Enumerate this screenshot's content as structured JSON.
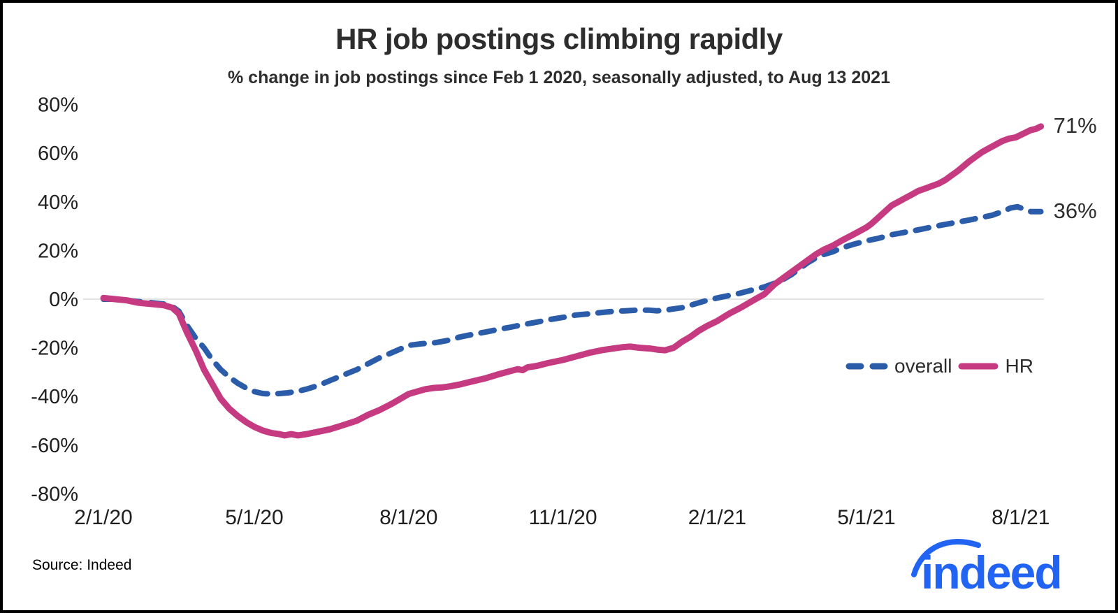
{
  "header": {
    "title": "HR job postings climbing rapidly",
    "subtitle": "% change in job postings since Feb 1 2020, seasonally adjusted, to Aug 13 2021"
  },
  "chart_data": {
    "type": "line",
    "title": "HR job postings climbing rapidly",
    "subtitle": "% change in job postings since Feb 1 2020, seasonally adjusted, to Aug 13 2021",
    "x_unit": "days since Feb 1 2020",
    "x_range_days": [
      0,
      559
    ],
    "ylim": [
      -80,
      80
    ],
    "grid": "zero-line-only",
    "legend_position": "center-right",
    "x_ticks": [
      {
        "label": "2/1/20",
        "day": 0
      },
      {
        "label": "5/1/20",
        "day": 90
      },
      {
        "label": "8/1/20",
        "day": 182
      },
      {
        "label": "11/1/20",
        "day": 274
      },
      {
        "label": "2/1/21",
        "day": 366
      },
      {
        "label": "5/1/21",
        "day": 455
      },
      {
        "label": "8/1/21",
        "day": 547
      }
    ],
    "y_ticks": [
      {
        "value": 80,
        "label": "80%"
      },
      {
        "value": 60,
        "label": "60%"
      },
      {
        "value": 40,
        "label": "40%"
      },
      {
        "value": 20,
        "label": "20%"
      },
      {
        "value": 0,
        "label": "0%"
      },
      {
        "value": -20,
        "label": "-20%"
      },
      {
        "value": -40,
        "label": "-40%"
      },
      {
        "value": -60,
        "label": "-60%"
      },
      {
        "value": -80,
        "label": "-80%"
      }
    ],
    "series": [
      {
        "name": "overall",
        "style": "dashed",
        "color": "#2a5caa",
        "end_label": "36%",
        "points": [
          [
            0,
            0
          ],
          [
            7,
            0
          ],
          [
            14,
            -0.5
          ],
          [
            21,
            -1
          ],
          [
            29,
            -1.5
          ],
          [
            36,
            -2
          ],
          [
            41,
            -3
          ],
          [
            45,
            -5
          ],
          [
            50,
            -11
          ],
          [
            55,
            -16
          ],
          [
            60,
            -20
          ],
          [
            65,
            -25
          ],
          [
            70,
            -29
          ],
          [
            75,
            -32
          ],
          [
            80,
            -34.5
          ],
          [
            85,
            -36.5
          ],
          [
            90,
            -38
          ],
          [
            95,
            -38.8
          ],
          [
            100,
            -39
          ],
          [
            105,
            -38.8
          ],
          [
            110,
            -38.5
          ],
          [
            115,
            -38
          ],
          [
            121,
            -37
          ],
          [
            128,
            -35.5
          ],
          [
            135,
            -33.5
          ],
          [
            142,
            -31.5
          ],
          [
            151,
            -29
          ],
          [
            158,
            -26.5
          ],
          [
            165,
            -24
          ],
          [
            172,
            -22
          ],
          [
            182,
            -19
          ],
          [
            190,
            -18.3
          ],
          [
            197,
            -18
          ],
          [
            205,
            -17
          ],
          [
            213,
            -15.5
          ],
          [
            220,
            -14.5
          ],
          [
            228,
            -13.5
          ],
          [
            235,
            -12.5
          ],
          [
            243,
            -11.5
          ],
          [
            250,
            -10.5
          ],
          [
            258,
            -9.5
          ],
          [
            265,
            -8.5
          ],
          [
            274,
            -7.5
          ],
          [
            282,
            -6.5
          ],
          [
            290,
            -6
          ],
          [
            297,
            -5.5
          ],
          [
            304,
            -5
          ],
          [
            311,
            -4.8
          ],
          [
            318,
            -4.5
          ],
          [
            325,
            -4.5
          ],
          [
            330,
            -4.8
          ],
          [
            335,
            -4.5
          ],
          [
            340,
            -4
          ],
          [
            345,
            -3.5
          ],
          [
            350,
            -2.5
          ],
          [
            355,
            -1.5
          ],
          [
            360,
            -0.5
          ],
          [
            366,
            0.5
          ],
          [
            373,
            1.5
          ],
          [
            380,
            2.5
          ],
          [
            387,
            3.8
          ],
          [
            394,
            5
          ],
          [
            400,
            6.5
          ],
          [
            405,
            8
          ],
          [
            410,
            10
          ],
          [
            415,
            12.5
          ],
          [
            420,
            15
          ],
          [
            425,
            17
          ],
          [
            430,
            18.5
          ],
          [
            435,
            19.5
          ],
          [
            440,
            21
          ],
          [
            447,
            22.5
          ],
          [
            455,
            24
          ],
          [
            462,
            25
          ],
          [
            470,
            26.5
          ],
          [
            478,
            27.5
          ],
          [
            486,
            28.5
          ],
          [
            493,
            29.5
          ],
          [
            500,
            30.5
          ],
          [
            508,
            31.5
          ],
          [
            516,
            32.5
          ],
          [
            523,
            33.5
          ],
          [
            530,
            34.5
          ],
          [
            536,
            36
          ],
          [
            541,
            37.5
          ],
          [
            545,
            38
          ],
          [
            549,
            37
          ],
          [
            553,
            36
          ],
          [
            559,
            36
          ]
        ]
      },
      {
        "name": "HR",
        "style": "solid",
        "color": "#c53a80",
        "end_label": "71%",
        "points": [
          [
            0,
            0.5
          ],
          [
            7,
            0
          ],
          [
            14,
            -0.5
          ],
          [
            21,
            -1.5
          ],
          [
            29,
            -2
          ],
          [
            36,
            -2.5
          ],
          [
            41,
            -3.5
          ],
          [
            45,
            -6
          ],
          [
            50,
            -14
          ],
          [
            55,
            -21
          ],
          [
            60,
            -29
          ],
          [
            65,
            -35
          ],
          [
            70,
            -41
          ],
          [
            75,
            -45
          ],
          [
            80,
            -48
          ],
          [
            85,
            -50.5
          ],
          [
            90,
            -52.5
          ],
          [
            95,
            -54
          ],
          [
            100,
            -55
          ],
          [
            105,
            -55.5
          ],
          [
            108,
            -56
          ],
          [
            112,
            -55.5
          ],
          [
            116,
            -56
          ],
          [
            121,
            -55.5
          ],
          [
            128,
            -54.5
          ],
          [
            135,
            -53.5
          ],
          [
            142,
            -52
          ],
          [
            151,
            -50
          ],
          [
            158,
            -47.5
          ],
          [
            165,
            -45.5
          ],
          [
            172,
            -43
          ],
          [
            182,
            -39
          ],
          [
            187,
            -38
          ],
          [
            192,
            -37
          ],
          [
            197,
            -36.5
          ],
          [
            202,
            -36.3
          ],
          [
            207,
            -35.8
          ],
          [
            213,
            -35
          ],
          [
            220,
            -33.8
          ],
          [
            228,
            -32.5
          ],
          [
            235,
            -31
          ],
          [
            243,
            -29.5
          ],
          [
            247,
            -28.8
          ],
          [
            250,
            -29.2
          ],
          [
            253,
            -28
          ],
          [
            258,
            -27.5
          ],
          [
            265,
            -26.3
          ],
          [
            274,
            -25
          ],
          [
            282,
            -23.5
          ],
          [
            290,
            -22
          ],
          [
            297,
            -21
          ],
          [
            304,
            -20.3
          ],
          [
            309,
            -19.8
          ],
          [
            314,
            -19.5
          ],
          [
            320,
            -20
          ],
          [
            326,
            -20.3
          ],
          [
            331,
            -20.8
          ],
          [
            335,
            -21
          ],
          [
            340,
            -20
          ],
          [
            345,
            -17.5
          ],
          [
            350,
            -15.5
          ],
          [
            355,
            -13
          ],
          [
            360,
            -11
          ],
          [
            366,
            -9
          ],
          [
            373,
            -6
          ],
          [
            380,
            -3.5
          ],
          [
            385,
            -1.5
          ],
          [
            390,
            0.5
          ],
          [
            394,
            2
          ],
          [
            400,
            6
          ],
          [
            405,
            8.5
          ],
          [
            410,
            11
          ],
          [
            415,
            13.5
          ],
          [
            420,
            16
          ],
          [
            425,
            18.5
          ],
          [
            430,
            20.5
          ],
          [
            435,
            22
          ],
          [
            440,
            24
          ],
          [
            447,
            26.5
          ],
          [
            451,
            28
          ],
          [
            455,
            29.5
          ],
          [
            458,
            31
          ],
          [
            462,
            33.5
          ],
          [
            466,
            36
          ],
          [
            470,
            38.5
          ],
          [
            474,
            40
          ],
          [
            478,
            41.5
          ],
          [
            482,
            43
          ],
          [
            486,
            44.5
          ],
          [
            490,
            45.5
          ],
          [
            494,
            46.5
          ],
          [
            498,
            47.5
          ],
          [
            502,
            49
          ],
          [
            506,
            51
          ],
          [
            510,
            53
          ],
          [
            516,
            56.5
          ],
          [
            520,
            58.5
          ],
          [
            524,
            60.5
          ],
          [
            528,
            62
          ],
          [
            532,
            63.5
          ],
          [
            536,
            65
          ],
          [
            540,
            66
          ],
          [
            544,
            66.5
          ],
          [
            547,
            67.5
          ],
          [
            550,
            68.5
          ],
          [
            553,
            69.5
          ],
          [
            556,
            70
          ],
          [
            559,
            71
          ]
        ]
      }
    ]
  },
  "footer": {
    "source": "Source: Indeed",
    "logo_text": "indeed",
    "logo_color": "#2164f3"
  }
}
